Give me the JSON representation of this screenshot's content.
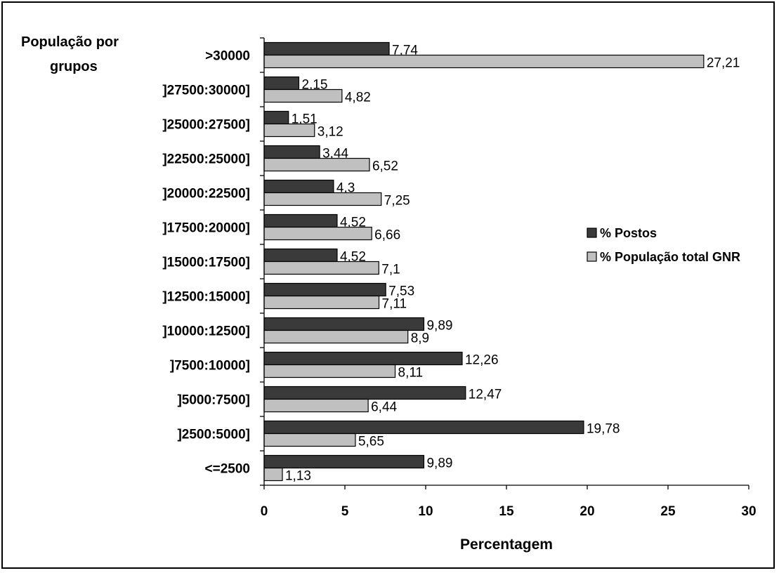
{
  "chart_data": {
    "type": "bar",
    "orientation": "horizontal",
    "categories": [
      "<=2500",
      "]2500:5000]",
      "]5000:7500]",
      "]7500:10000]",
      "]10000:12500]",
      "]12500:15000]",
      "]15000:17500]",
      "]17500:20000]",
      "]20000:22500]",
      "]22500:25000]",
      "]25000:27500]",
      "]27500:30000]",
      ">30000"
    ],
    "series": [
      {
        "name": "% Postos",
        "color": "#3a3a3a",
        "values": [
          9.89,
          19.78,
          12.47,
          12.26,
          9.89,
          7.53,
          4.52,
          4.52,
          4.3,
          3.44,
          1.51,
          2.15,
          7.74
        ],
        "labels": [
          "9,89",
          "19,78",
          "12,47",
          "12,26",
          "9,89",
          "7,53",
          "4,52",
          "4,52",
          "4,3",
          "3,44",
          "1,51",
          "2,15",
          "7,74"
        ]
      },
      {
        "name": "% População total GNR",
        "color": "#c0c0c0",
        "values": [
          1.13,
          5.65,
          6.44,
          8.11,
          8.9,
          7.11,
          7.1,
          6.66,
          7.25,
          6.52,
          3.12,
          4.82,
          27.21
        ],
        "labels": [
          "1,13",
          "5,65",
          "6,44",
          "8,11",
          "8,9",
          "7,11",
          "7,1",
          "6,66",
          "7,25",
          "6,52",
          "3,12",
          "4,82",
          "27,21"
        ]
      }
    ],
    "title": "",
    "xlabel": "Percentagem",
    "ylabel": "População por grupos",
    "xlim": [
      0,
      30
    ],
    "xticks": [
      0,
      5,
      10,
      15,
      20,
      25,
      30
    ],
    "grid": false,
    "legend_position": "right"
  }
}
